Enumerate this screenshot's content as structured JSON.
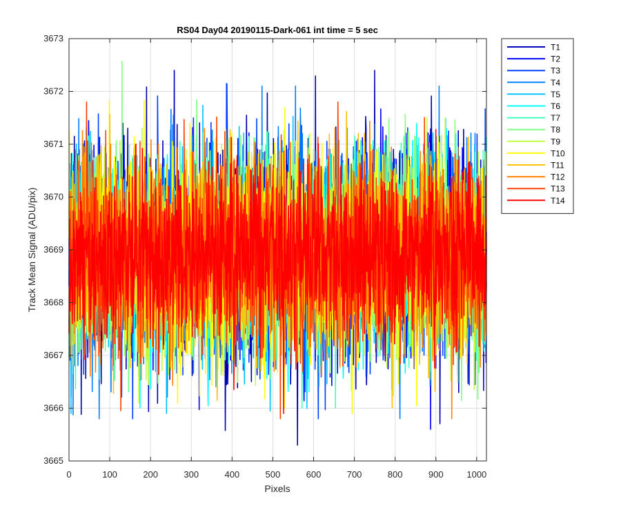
{
  "chart_data": {
    "type": "line",
    "title": "RS04 Day04 20190115-Dark-061 int time = 5 sec",
    "xlabel": "Pixels",
    "ylabel": "Track Mean Signal (ADU/pix)",
    "xlim": [
      0,
      1024
    ],
    "ylim": [
      3665,
      3673
    ],
    "xticks": [
      0,
      100,
      200,
      300,
      400,
      500,
      600,
      700,
      800,
      900,
      1000
    ],
    "yticks": [
      3665,
      3666,
      3667,
      3668,
      3669,
      3670,
      3671,
      3672,
      3673
    ],
    "grid": true,
    "legend_location": "outside-top-right",
    "n_points_per_series": 1024,
    "series": [
      {
        "name": "T1",
        "color": "#0000b4",
        "mean": 3668.9,
        "std": 1.1,
        "min": 3665.3,
        "max": 3672.4
      },
      {
        "name": "T2",
        "color": "#0000ff",
        "mean": 3668.9,
        "std": 1.05,
        "min": 3665.6,
        "max": 3672.4
      },
      {
        "name": "T3",
        "color": "#0040ff",
        "mean": 3668.9,
        "std": 1.0,
        "min": 3665.8,
        "max": 3672.2
      },
      {
        "name": "T4",
        "color": "#0080ff",
        "mean": 3668.9,
        "std": 1.0,
        "min": 3665.8,
        "max": 3672.1
      },
      {
        "name": "T5",
        "color": "#00c0ff",
        "mean": 3668.9,
        "std": 0.95,
        "min": 3665.9,
        "max": 3672.0
      },
      {
        "name": "T6",
        "color": "#00ffff",
        "mean": 3668.9,
        "std": 0.95,
        "min": 3666.0,
        "max": 3672.2
      },
      {
        "name": "T7",
        "color": "#40ffbf",
        "mean": 3668.9,
        "std": 0.95,
        "min": 3666.0,
        "max": 3672.4
      },
      {
        "name": "T8",
        "color": "#80ff80",
        "mean": 3668.9,
        "std": 0.95,
        "min": 3666.1,
        "max": 3672.6
      },
      {
        "name": "T9",
        "color": "#c0ff40",
        "mean": 3668.9,
        "std": 0.95,
        "min": 3666.1,
        "max": 3672.4
      },
      {
        "name": "T10",
        "color": "#ffff00",
        "mean": 3668.9,
        "std": 0.95,
        "min": 3665.7,
        "max": 3672.2
      },
      {
        "name": "T11",
        "color": "#ffc000",
        "mean": 3668.9,
        "std": 0.9,
        "min": 3666.0,
        "max": 3672.0
      },
      {
        "name": "T12",
        "color": "#ff8000",
        "mean": 3668.9,
        "std": 0.9,
        "min": 3665.8,
        "max": 3671.8
      },
      {
        "name": "T13",
        "color": "#ff4000",
        "mean": 3668.9,
        "std": 0.9,
        "min": 3665.8,
        "max": 3671.8
      },
      {
        "name": "T14",
        "color": "#ff0000",
        "mean": 3668.9,
        "std": 0.8,
        "min": 3665.9,
        "max": 3672.0
      }
    ]
  }
}
